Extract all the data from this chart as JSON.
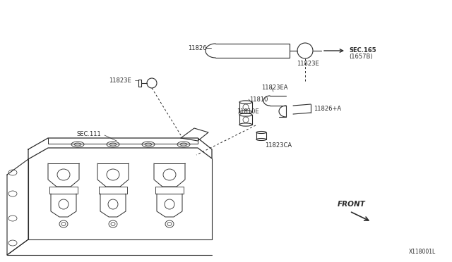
{
  "background_color": "#ffffff",
  "line_color": "#2a2a2a",
  "fig_width": 6.4,
  "fig_height": 3.72,
  "dpi": 100,
  "watermark": "X118001L",
  "top_hose_label": "11826",
  "top_connector_label": "11823E",
  "sec165_line1": "SEC.165",
  "sec165_line2": "(1657B)",
  "left_connector_label": "11823E",
  "label_11823EA": "11823EA",
  "label_11810": "11810",
  "label_11810E": "11810E",
  "label_11826A": "11826+A",
  "label_11823CA": "11823CA",
  "label_sec111": "SEC.111",
  "label_front": "FRONT"
}
